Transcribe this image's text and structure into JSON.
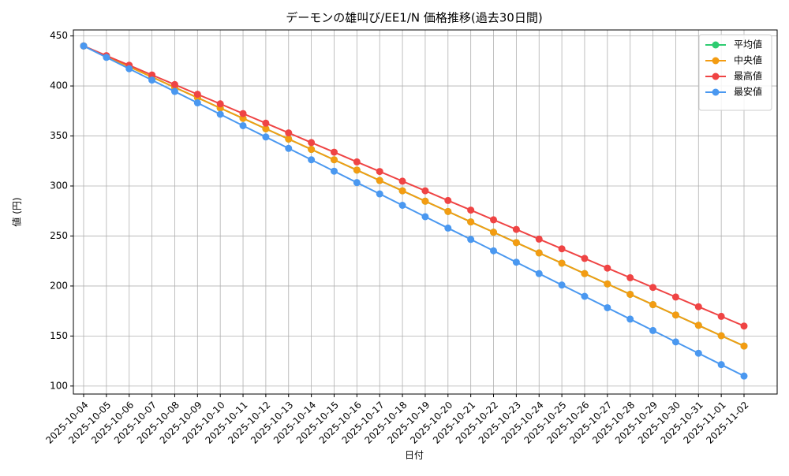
{
  "chart_data": {
    "type": "line",
    "title": "デーモンの雄叫び/EE1/N 価格推移(過去30日間)",
    "x_label": "日付",
    "y_label": "値 (円)",
    "categories": [
      "2025-10-04",
      "2025-10-05",
      "2025-10-06",
      "2025-10-07",
      "2025-10-08",
      "2025-10-09",
      "2025-10-10",
      "2025-10-11",
      "2025-10-12",
      "2025-10-13",
      "2025-10-14",
      "2025-10-15",
      "2025-10-16",
      "2025-10-17",
      "2025-10-18",
      "2025-10-19",
      "2025-10-20",
      "2025-10-21",
      "2025-10-22",
      "2025-10-23",
      "2025-10-24",
      "2025-10-25",
      "2025-10-26",
      "2025-10-27",
      "2025-10-28",
      "2025-10-29",
      "2025-10-30",
      "2025-10-31",
      "2025-11-01",
      "2025-11-02"
    ],
    "series": [
      {
        "name": "平均値",
        "color": "#2ecc71",
        "values": [
          440,
          429.7,
          419.3,
          409.0,
          398.6,
          388.3,
          377.9,
          367.6,
          357.2,
          346.9,
          336.6,
          326.2,
          315.9,
          305.5,
          295.2,
          284.8,
          274.5,
          264.1,
          253.8,
          243.4,
          233.1,
          222.8,
          212.4,
          202.1,
          191.7,
          181.4,
          171.0,
          160.7,
          150.3,
          140
        ]
      },
      {
        "name": "中央値",
        "color": "#f39c12",
        "values": [
          440,
          429.7,
          419.3,
          409.0,
          398.6,
          388.3,
          377.9,
          367.6,
          357.2,
          346.9,
          336.6,
          326.2,
          315.9,
          305.5,
          295.2,
          284.8,
          274.5,
          264.1,
          253.8,
          243.4,
          233.1,
          222.8,
          212.4,
          202.1,
          191.7,
          181.4,
          171.0,
          160.7,
          150.3,
          140
        ]
      },
      {
        "name": "最高値",
        "color": "#ef4444",
        "values": [
          440,
          430.3,
          420.7,
          411.0,
          401.4,
          391.7,
          382.1,
          372.4,
          362.8,
          353.1,
          343.4,
          333.8,
          324.1,
          314.5,
          304.8,
          295.2,
          285.5,
          275.9,
          266.2,
          256.6,
          246.9,
          237.2,
          227.6,
          217.9,
          208.3,
          198.6,
          189.0,
          179.3,
          169.7,
          160
        ]
      },
      {
        "name": "最安値",
        "color": "#4a98f0",
        "values": [
          440,
          428.6,
          417.2,
          405.9,
          394.5,
          383.1,
          371.7,
          360.3,
          349.0,
          337.6,
          326.2,
          314.8,
          303.4,
          292.1,
          280.7,
          269.3,
          257.9,
          246.6,
          235.2,
          223.8,
          212.4,
          201.0,
          189.7,
          178.3,
          166.9,
          155.5,
          144.1,
          132.8,
          121.4,
          110
        ]
      }
    ],
    "ylim": [
      92,
      456
    ],
    "yticks": [
      100,
      150,
      200,
      250,
      300,
      350,
      400,
      450
    ],
    "grid": true,
    "legend": "upper-right"
  }
}
